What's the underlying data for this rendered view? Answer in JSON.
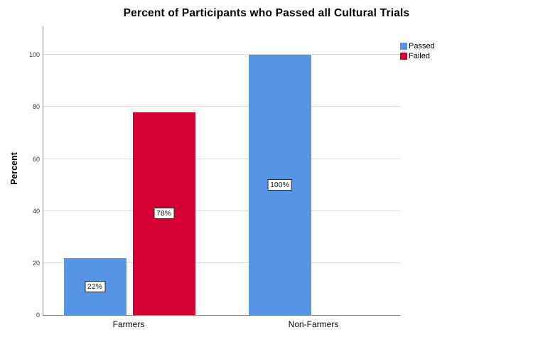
{
  "chart_data": {
    "type": "bar",
    "title": "Percent of Participants who Passed all Cultural Trials",
    "xlabel": "",
    "ylabel": "Percent",
    "categories": [
      "Farmers",
      "Non-Farmers"
    ],
    "series": [
      {
        "name": "Passed",
        "color": "#5794E5",
        "values": [
          22,
          100
        ],
        "labels": [
          "22%",
          "100%"
        ]
      },
      {
        "name": "Failed",
        "color": "#D60032",
        "values": [
          78,
          0
        ],
        "labels": [
          "78%",
          null
        ]
      }
    ],
    "yticks": [
      0,
      20,
      40,
      60,
      80,
      100
    ],
    "ylim": [
      0,
      111
    ],
    "grid": "horizontal",
    "legend_position": "top-right-outside",
    "colors": {
      "gridline": "#DCDCDC",
      "axis": "#8C8C8C",
      "label_box_border": "#262626",
      "label_box_background": "#FFFFFF"
    }
  }
}
